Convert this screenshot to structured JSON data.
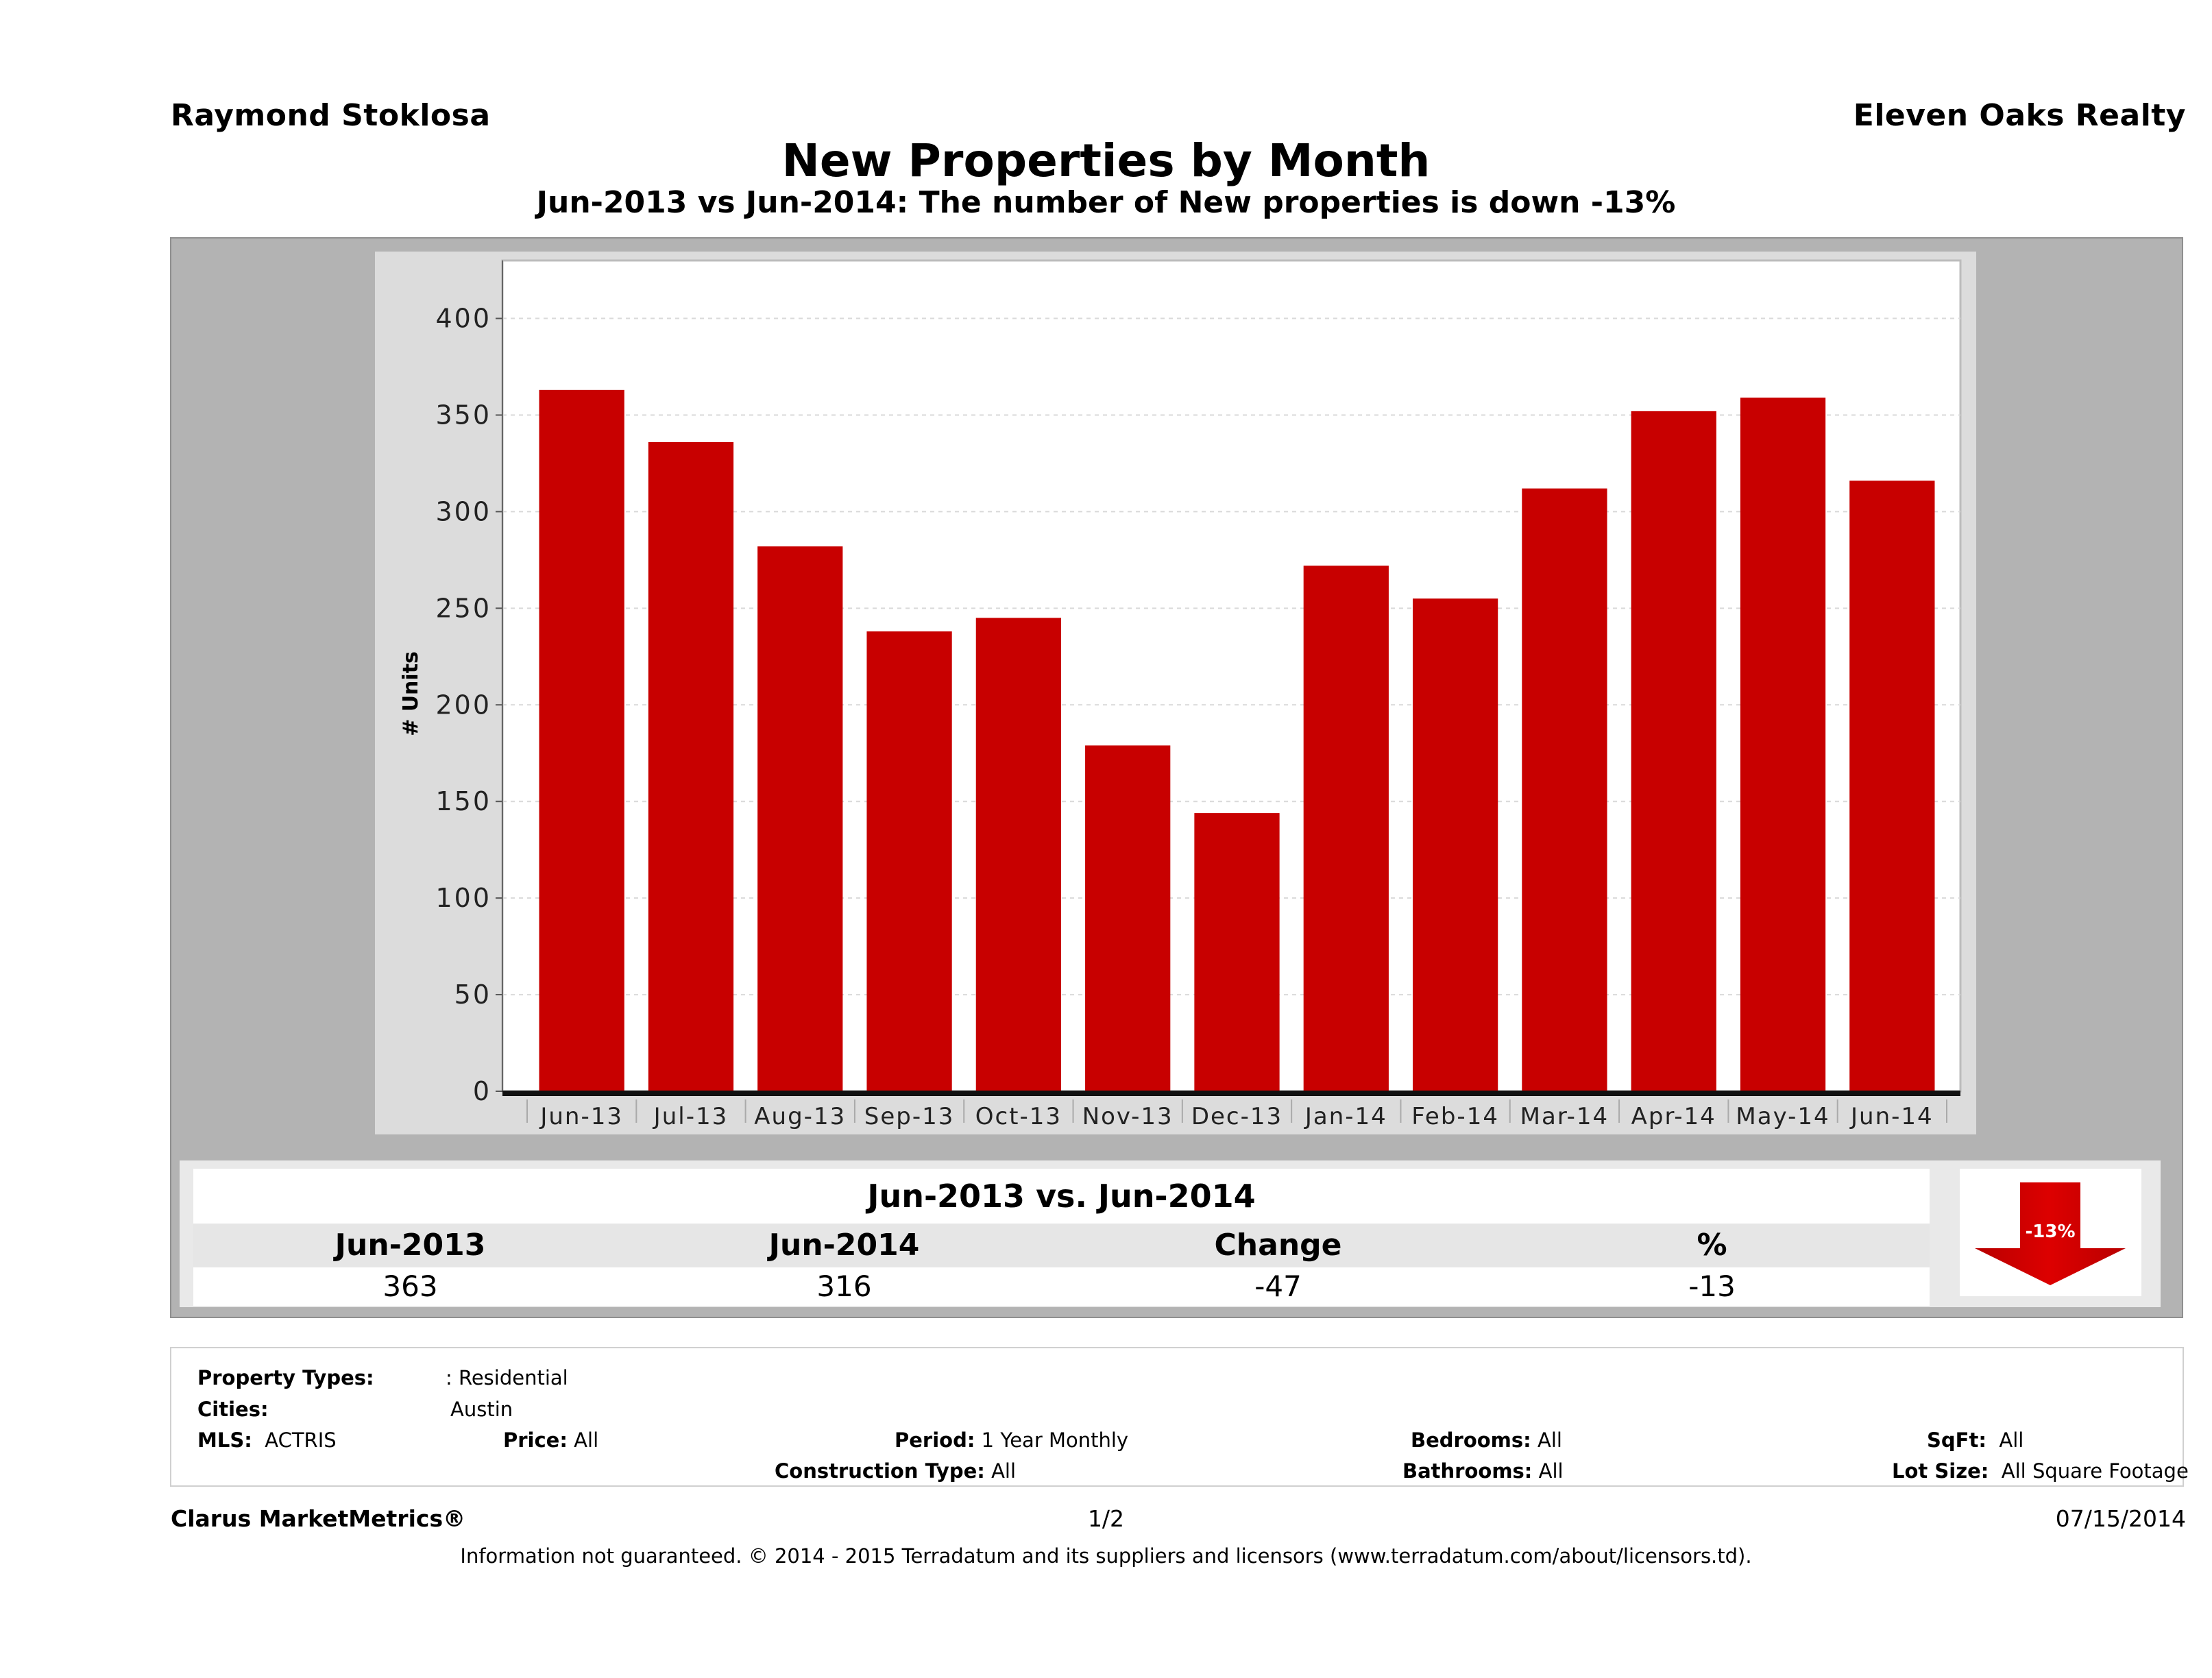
{
  "header": {
    "agent_name": "Raymond Stoklosa",
    "brokerage": "Eleven Oaks Realty",
    "title": "New Properties by Month",
    "subtitle": "Jun-2013 vs Jun-2014: The number of New  properties is down -13%"
  },
  "colors": {
    "bar": "#c80000",
    "panel": "#b3b3b3",
    "chart_bg": "#dcdcdc",
    "plot_bg": "#ffffff",
    "arrow": "#cc0000"
  },
  "chart_data": {
    "type": "bar",
    "title": "New Properties by Month",
    "xlabel": "",
    "ylabel": "# Units",
    "ylim": [
      0,
      430
    ],
    "yticks": [
      0,
      50,
      100,
      150,
      200,
      250,
      300,
      350,
      400
    ],
    "grid": true,
    "legend": "none",
    "categories": [
      "Jun-13",
      "Jul-13",
      "Aug-13",
      "Sep-13",
      "Oct-13",
      "Nov-13",
      "Dec-13",
      "Jan-14",
      "Feb-14",
      "Mar-14",
      "Apr-14",
      "May-14",
      "Jun-14"
    ],
    "series": [
      {
        "name": "New Properties",
        "values": [
          363,
          336,
          282,
          238,
          245,
          179,
          144,
          272,
          255,
          312,
          352,
          359,
          316
        ]
      }
    ]
  },
  "comparison": {
    "title": "Jun-2013 vs. Jun-2014",
    "headers": [
      "Jun-2013",
      "Jun-2014",
      "Change",
      "%"
    ],
    "values": [
      "363",
      "316",
      "-47",
      "-13"
    ],
    "badge": "-13%",
    "direction": "down"
  },
  "criteria": {
    "property_types_label": "Property Types:",
    "property_types_value": ": Residential",
    "cities_label": "Cities:",
    "cities_value": "Austin",
    "mls_label": "MLS:",
    "mls_value": "ACTRIS",
    "price_label": "Price:",
    "price_value": "All",
    "period_label": "Period:",
    "period_value": "1 Year Monthly",
    "construction_label": "Construction Type:",
    "construction_value": "All",
    "bedrooms_label": "Bedrooms:",
    "bedrooms_value": "All",
    "bathrooms_label": "Bathrooms:",
    "bathrooms_value": "All",
    "sqft_label": "SqFt:",
    "sqft_value": "All",
    "lotsize_label": "Lot Size:",
    "lotsize_value": "All Square Footage"
  },
  "footer": {
    "brand": "Clarus MarketMetrics®",
    "page": "1/2",
    "date": "07/15/2014",
    "disclaimer": "Information not guaranteed. © 2014 - 2015 Terradatum and its suppliers and licensors (www.terradatum.com/about/licensors.td)."
  }
}
